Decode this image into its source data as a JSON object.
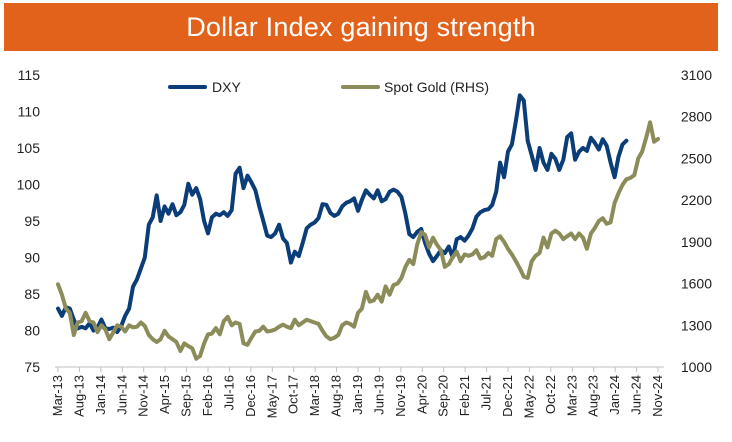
{
  "chart_data": {
    "type": "line",
    "title": "Dollar Index gaining strength",
    "colors": {
      "banner": "#e2621b",
      "dxy": "#0b3d78",
      "gold": "#8c8c5a",
      "title_text": "#ffffff"
    },
    "y_left": {
      "min": 75,
      "max": 115,
      "ticks": [
        75,
        80,
        85,
        90,
        95,
        100,
        105,
        110,
        115
      ]
    },
    "y_right": {
      "label": "RHS",
      "min": 1000,
      "max": 3100,
      "ticks": [
        1000,
        1300,
        1600,
        1900,
        2200,
        2500,
        2800,
        3100
      ]
    },
    "x_tick_labels": [
      "Mar-13",
      "Aug-13",
      "Jan-14",
      "Jun-14",
      "Nov-14",
      "Apr-15",
      "Sep-15",
      "Feb-16",
      "Jul-16",
      "Dec-16",
      "May-17",
      "Oct-17",
      "Mar-18",
      "Aug-18",
      "Jan-19",
      "Jun-19",
      "Nov-19",
      "Apr-20",
      "Sep-20",
      "Feb-21",
      "Jul-21",
      "Dec-21",
      "May-22",
      "Oct-22",
      "Mar-23",
      "Aug-23",
      "Jan-24",
      "Jun-24",
      "Nov-24"
    ],
    "series": [
      {
        "name": "DXY",
        "axis": "left",
        "points": [
          [
            0,
            83
          ],
          [
            1,
            82
          ],
          [
            2,
            83.2
          ],
          [
            3,
            83
          ],
          [
            4,
            81.5
          ],
          [
            5,
            80.3
          ],
          [
            6,
            80.5
          ],
          [
            7,
            80.3
          ],
          [
            8,
            81
          ],
          [
            9,
            80
          ],
          [
            10,
            80.4
          ],
          [
            11,
            81.5
          ],
          [
            12,
            80.3
          ],
          [
            13,
            80.2
          ],
          [
            14,
            80.4
          ],
          [
            15,
            79.8
          ],
          [
            16,
            80.6
          ],
          [
            17,
            82
          ],
          [
            18,
            83
          ],
          [
            19,
            86
          ],
          [
            20,
            87
          ],
          [
            21,
            88.5
          ],
          [
            22,
            90
          ],
          [
            23,
            94.5
          ],
          [
            24,
            95.5
          ],
          [
            25,
            98.5
          ],
          [
            26,
            95
          ],
          [
            27,
            97
          ],
          [
            28,
            96
          ],
          [
            29,
            97.3
          ],
          [
            30,
            95.8
          ],
          [
            31,
            96.2
          ],
          [
            32,
            97.2
          ],
          [
            33,
            100.1
          ],
          [
            34,
            98.6
          ],
          [
            35,
            99.5
          ],
          [
            36,
            98
          ],
          [
            37,
            95
          ],
          [
            38,
            93.3
          ],
          [
            39,
            95.5
          ],
          [
            40,
            96
          ],
          [
            41,
            95.8
          ],
          [
            42,
            96.2
          ],
          [
            43,
            95.7
          ],
          [
            44,
            96.5
          ],
          [
            45,
            101.5
          ],
          [
            46,
            102.3
          ],
          [
            47,
            99.5
          ],
          [
            48,
            101.2
          ],
          [
            49,
            100.3
          ],
          [
            50,
            99.2
          ],
          [
            51,
            97
          ],
          [
            52,
            95
          ],
          [
            53,
            93
          ],
          [
            54,
            92.8
          ],
          [
            55,
            93.3
          ],
          [
            56,
            94.5
          ],
          [
            57,
            92.6
          ],
          [
            58,
            92
          ],
          [
            59,
            89.3
          ],
          [
            60,
            90.8
          ],
          [
            61,
            90.2
          ],
          [
            62,
            92
          ],
          [
            63,
            94
          ],
          [
            64,
            94.5
          ],
          [
            65,
            94.8
          ],
          [
            66,
            95.4
          ],
          [
            67,
            97.3
          ],
          [
            68,
            97.2
          ],
          [
            69,
            96.1
          ],
          [
            70,
            95.7
          ],
          [
            71,
            96
          ],
          [
            72,
            97
          ],
          [
            73,
            97.5
          ],
          [
            74,
            97.7
          ],
          [
            75,
            98.1
          ],
          [
            76,
            96.4
          ],
          [
            77,
            97.9
          ],
          [
            78,
            99.2
          ],
          [
            79,
            98.6
          ],
          [
            80,
            98.1
          ],
          [
            81,
            99.2
          ],
          [
            82,
            97.7
          ],
          [
            83,
            98
          ],
          [
            84,
            99
          ],
          [
            85,
            99.3
          ],
          [
            86,
            99
          ],
          [
            87,
            98.3
          ],
          [
            88,
            96
          ],
          [
            89,
            93.2
          ],
          [
            90,
            92.8
          ],
          [
            91,
            93.5
          ],
          [
            92,
            93.9
          ],
          [
            93,
            92
          ],
          [
            94,
            90.5
          ],
          [
            95,
            89.5
          ],
          [
            96,
            90.2
          ],
          [
            97,
            91
          ],
          [
            98,
            90.6
          ],
          [
            99,
            91.5
          ],
          [
            100,
            90
          ],
          [
            101,
            92.5
          ],
          [
            102,
            92.8
          ],
          [
            103,
            92.3
          ],
          [
            104,
            93
          ],
          [
            105,
            94
          ],
          [
            106,
            95.6
          ],
          [
            107,
            96.2
          ],
          [
            108,
            96.5
          ],
          [
            109,
            96.6
          ],
          [
            110,
            97.2
          ],
          [
            111,
            99
          ],
          [
            112,
            103
          ],
          [
            113,
            101
          ],
          [
            114,
            104.5
          ],
          [
            115,
            105.5
          ],
          [
            116,
            108.7
          ],
          [
            117,
            112.2
          ],
          [
            118,
            111.5
          ],
          [
            119,
            106
          ],
          [
            120,
            104
          ],
          [
            121,
            102
          ],
          [
            122,
            105
          ],
          [
            123,
            103
          ],
          [
            124,
            102
          ],
          [
            125,
            104.2
          ],
          [
            126,
            103.5
          ],
          [
            127,
            102
          ],
          [
            128,
            103.4
          ],
          [
            129,
            106.5
          ],
          [
            130,
            107
          ],
          [
            131,
            103.4
          ],
          [
            132,
            104.5
          ],
          [
            133,
            105
          ],
          [
            134,
            104.6
          ],
          [
            135,
            106.4
          ],
          [
            136,
            105.7
          ],
          [
            137,
            104.8
          ],
          [
            138,
            106.2
          ],
          [
            139,
            105.3
          ],
          [
            140,
            103
          ],
          [
            141,
            101
          ],
          [
            142,
            103.8
          ],
          [
            143,
            105.5
          ],
          [
            144,
            106
          ]
        ]
      },
      {
        "name": "Spot Gold (RHS)",
        "axis": "right",
        "points": [
          [
            0,
            1595
          ],
          [
            1,
            1520
          ],
          [
            2,
            1420
          ],
          [
            3,
            1390
          ],
          [
            4,
            1230
          ],
          [
            5,
            1320
          ],
          [
            6,
            1330
          ],
          [
            7,
            1390
          ],
          [
            8,
            1330
          ],
          [
            9,
            1320
          ],
          [
            10,
            1250
          ],
          [
            11,
            1300
          ],
          [
            12,
            1270
          ],
          [
            13,
            1200
          ],
          [
            14,
            1250
          ],
          [
            15,
            1300
          ],
          [
            16,
            1290
          ],
          [
            17,
            1255
          ],
          [
            18,
            1300
          ],
          [
            19,
            1285
          ],
          [
            20,
            1290
          ],
          [
            21,
            1320
          ],
          [
            22,
            1295
          ],
          [
            23,
            1230
          ],
          [
            24,
            1200
          ],
          [
            25,
            1180
          ],
          [
            26,
            1200
          ],
          [
            27,
            1260
          ],
          [
            28,
            1220
          ],
          [
            29,
            1200
          ],
          [
            30,
            1180
          ],
          [
            31,
            1115
          ],
          [
            32,
            1170
          ],
          [
            33,
            1150
          ],
          [
            34,
            1135
          ],
          [
            35,
            1060
          ],
          [
            36,
            1080
          ],
          [
            37,
            1170
          ],
          [
            38,
            1235
          ],
          [
            39,
            1240
          ],
          [
            40,
            1280
          ],
          [
            41,
            1235
          ],
          [
            42,
            1330
          ],
          [
            43,
            1360
          ],
          [
            44,
            1300
          ],
          [
            45,
            1320
          ],
          [
            46,
            1310
          ],
          [
            47,
            1170
          ],
          [
            48,
            1160
          ],
          [
            49,
            1210
          ],
          [
            50,
            1255
          ],
          [
            51,
            1260
          ],
          [
            52,
            1290
          ],
          [
            53,
            1255
          ],
          [
            54,
            1260
          ],
          [
            55,
            1270
          ],
          [
            56,
            1290
          ],
          [
            57,
            1305
          ],
          [
            58,
            1290
          ],
          [
            59,
            1280
          ],
          [
            60,
            1340
          ],
          [
            61,
            1300
          ],
          [
            62,
            1320
          ],
          [
            63,
            1340
          ],
          [
            64,
            1330
          ],
          [
            65,
            1320
          ],
          [
            66,
            1310
          ],
          [
            67,
            1260
          ],
          [
            68,
            1220
          ],
          [
            69,
            1200
          ],
          [
            70,
            1210
          ],
          [
            71,
            1230
          ],
          [
            72,
            1300
          ],
          [
            73,
            1320
          ],
          [
            74,
            1310
          ],
          [
            75,
            1290
          ],
          [
            76,
            1390
          ],
          [
            77,
            1420
          ],
          [
            78,
            1540
          ],
          [
            79,
            1470
          ],
          [
            80,
            1480
          ],
          [
            81,
            1520
          ],
          [
            82,
            1470
          ],
          [
            83,
            1580
          ],
          [
            84,
            1520
          ],
          [
            85,
            1590
          ],
          [
            86,
            1600
          ],
          [
            87,
            1640
          ],
          [
            88,
            1720
          ],
          [
            89,
            1770
          ],
          [
            90,
            1740
          ],
          [
            91,
            1880
          ],
          [
            92,
            1970
          ],
          [
            93,
            1950
          ],
          [
            94,
            1860
          ],
          [
            95,
            1930
          ],
          [
            96,
            1880
          ],
          [
            97,
            1840
          ],
          [
            98,
            1720
          ],
          [
            99,
            1740
          ],
          [
            100,
            1790
          ],
          [
            101,
            1830
          ],
          [
            102,
            1760
          ],
          [
            103,
            1810
          ],
          [
            104,
            1800
          ],
          [
            105,
            1810
          ],
          [
            106,
            1840
          ],
          [
            107,
            1780
          ],
          [
            108,
            1790
          ],
          [
            109,
            1820
          ],
          [
            110,
            1800
          ],
          [
            111,
            1920
          ],
          [
            112,
            1940
          ],
          [
            113,
            1900
          ],
          [
            114,
            1850
          ],
          [
            115,
            1810
          ],
          [
            116,
            1760
          ],
          [
            117,
            1710
          ],
          [
            118,
            1650
          ],
          [
            119,
            1640
          ],
          [
            120,
            1760
          ],
          [
            121,
            1800
          ],
          [
            122,
            1820
          ],
          [
            123,
            1930
          ],
          [
            124,
            1860
          ],
          [
            125,
            1960
          ],
          [
            126,
            1980
          ],
          [
            127,
            1960
          ],
          [
            128,
            1920
          ],
          [
            129,
            1940
          ],
          [
            130,
            1960
          ],
          [
            131,
            1920
          ],
          [
            132,
            1960
          ],
          [
            133,
            1930
          ],
          [
            134,
            1850
          ],
          [
            135,
            1960
          ],
          [
            136,
            2000
          ],
          [
            137,
            2050
          ],
          [
            138,
            2070
          ],
          [
            139,
            2030
          ],
          [
            140,
            2040
          ],
          [
            141,
            2180
          ],
          [
            142,
            2250
          ],
          [
            143,
            2310
          ],
          [
            144,
            2350
          ],
          [
            145,
            2360
          ],
          [
            146,
            2380
          ],
          [
            147,
            2500
          ],
          [
            148,
            2550
          ],
          [
            149,
            2650
          ],
          [
            150,
            2760
          ],
          [
            151,
            2620
          ],
          [
            152,
            2640
          ]
        ]
      }
    ],
    "x_index_max": 152,
    "legend": {
      "position": "top-center",
      "entries": [
        "DXY",
        "Spot Gold (RHS)"
      ]
    }
  }
}
